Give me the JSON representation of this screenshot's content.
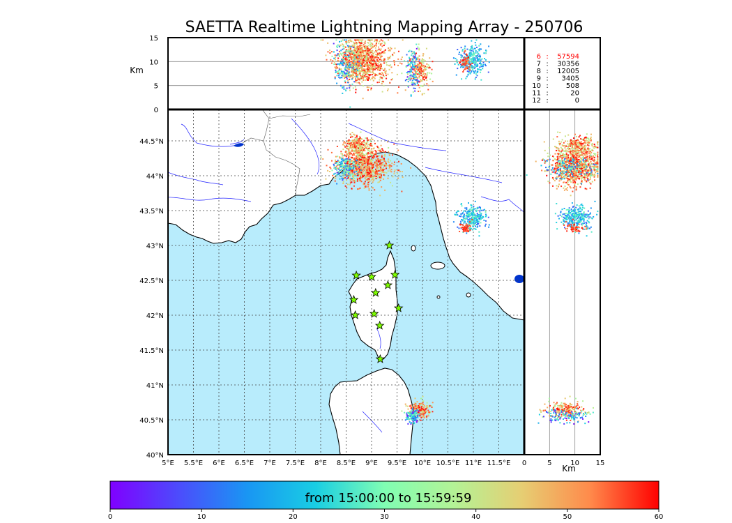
{
  "title": "SAETTA Realtime Lightning Mapping Array - 250706",
  "chart_data": {
    "type": "scatter",
    "map": {
      "lon_range": [
        5.0,
        12.0
      ],
      "lat_range": [
        40.0,
        44.95
      ],
      "x_ticks": [
        "5°E",
        "5.5°E",
        "6°E",
        "6.5°E",
        "7°E",
        "7.5°E",
        "8°E",
        "8.5°E",
        "9°E",
        "9.5°E",
        "10°E",
        "10.5°E",
        "11°E",
        "11.5°E"
      ],
      "x_tick_values": [
        5,
        5.5,
        6,
        6.5,
        7,
        7.5,
        8,
        8.5,
        9,
        9.5,
        10,
        10.5,
        11,
        11.5
      ],
      "y_ticks": [
        "44.5°N",
        "44°N",
        "43.5°N",
        "43°N",
        "42.5°N",
        "42°N",
        "41.5°N",
        "41°N",
        "40.5°N",
        "40°N"
      ],
      "y_tick_values": [
        44.5,
        44,
        43.5,
        43,
        42.5,
        42,
        41.5,
        41,
        40.5,
        40
      ],
      "grid": true,
      "sea_color": "#b8ecfc",
      "land_color": "#ffffff"
    },
    "altitude_axis": {
      "label": "Km",
      "ticks": [
        "0",
        "5",
        "10",
        "15"
      ],
      "tick_values": [
        0,
        5,
        10,
        15
      ],
      "range": [
        0,
        15
      ]
    },
    "stations": [
      {
        "lon": 9.35,
        "lat": 43.0
      },
      {
        "lon": 8.7,
        "lat": 42.57
      },
      {
        "lon": 9.0,
        "lat": 42.55
      },
      {
        "lon": 9.46,
        "lat": 42.58
      },
      {
        "lon": 9.32,
        "lat": 42.43
      },
      {
        "lon": 9.08,
        "lat": 42.32
      },
      {
        "lon": 8.65,
        "lat": 42.22
      },
      {
        "lon": 9.53,
        "lat": 42.1
      },
      {
        "lon": 8.68,
        "lat": 42.0
      },
      {
        "lon": 9.05,
        "lat": 42.02
      },
      {
        "lon": 9.16,
        "lat": 41.85
      },
      {
        "lon": 9.17,
        "lat": 41.37
      }
    ],
    "clusters": [
      {
        "lon": 8.85,
        "lat": 44.13,
        "slon": 0.28,
        "slat": 0.13,
        "alt": 10.0,
        "salt": 2.4,
        "n": 900,
        "tmin": 38,
        "tmax": 60
      },
      {
        "lon": 8.72,
        "lat": 44.43,
        "slon": 0.13,
        "slat": 0.07,
        "alt": 10.5,
        "salt": 2.0,
        "n": 250,
        "tmin": 35,
        "tmax": 60
      },
      {
        "lon": 8.48,
        "lat": 44.12,
        "slon": 0.12,
        "slat": 0.08,
        "alt": 9.0,
        "salt": 2.5,
        "n": 160,
        "tmin": 5,
        "tmax": 35
      },
      {
        "lon": 9.95,
        "lat": 40.65,
        "slon": 0.1,
        "slat": 0.06,
        "alt": 8.5,
        "salt": 2.0,
        "n": 220,
        "tmin": 35,
        "tmax": 60
      },
      {
        "lon": 9.8,
        "lat": 40.55,
        "slon": 0.07,
        "slat": 0.05,
        "alt": 8.0,
        "salt": 2.0,
        "n": 110,
        "tmin": 0,
        "tmax": 30
      },
      {
        "lon": 10.98,
        "lat": 43.4,
        "slon": 0.13,
        "slat": 0.09,
        "alt": 10.0,
        "salt": 1.6,
        "n": 280,
        "tmin": 8,
        "tmax": 30
      },
      {
        "lon": 10.85,
        "lat": 43.25,
        "slon": 0.06,
        "slat": 0.04,
        "alt": 10.0,
        "salt": 1.0,
        "n": 50,
        "tmin": 50,
        "tmax": 60
      }
    ],
    "colorbar": {
      "label": "from 15:00:00 to 15:59:59",
      "ticks": [
        "0",
        "10",
        "20",
        "30",
        "40",
        "50",
        "60"
      ],
      "tick_values": [
        0,
        10,
        20,
        30,
        40,
        50,
        60
      ],
      "range": [
        0,
        60
      ],
      "colormap": "rainbow"
    },
    "counts": {
      "rows": [
        {
          "hour": "6",
          "count": "57594",
          "color": "#ff0000"
        },
        {
          "hour": "7",
          "count": "30356",
          "color": "#000000"
        },
        {
          "hour": "8",
          "count": "12005",
          "color": "#000000"
        },
        {
          "hour": "9",
          "count": "3405",
          "color": "#000000"
        },
        {
          "hour": "10",
          "count": "508",
          "color": "#000000"
        },
        {
          "hour": "11",
          "count": "20",
          "color": "#000000"
        },
        {
          "hour": "12",
          "count": "0",
          "color": "#000000"
        }
      ]
    }
  }
}
